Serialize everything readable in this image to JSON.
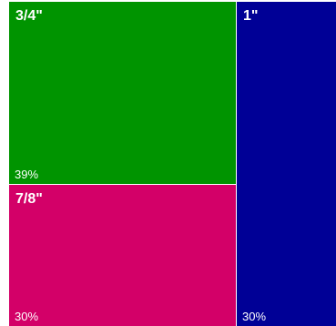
{
  "chart_data": {
    "type": "treemap",
    "items": [
      {
        "label": "3/4\"",
        "value": 39,
        "value_label": "39%",
        "color": "#009400"
      },
      {
        "label": "7/8\"",
        "value": 30,
        "value_label": "30%",
        "color": "#d30068"
      },
      {
        "label": "1\"",
        "value": 30,
        "value_label": "30%",
        "color": "#000096"
      }
    ]
  }
}
